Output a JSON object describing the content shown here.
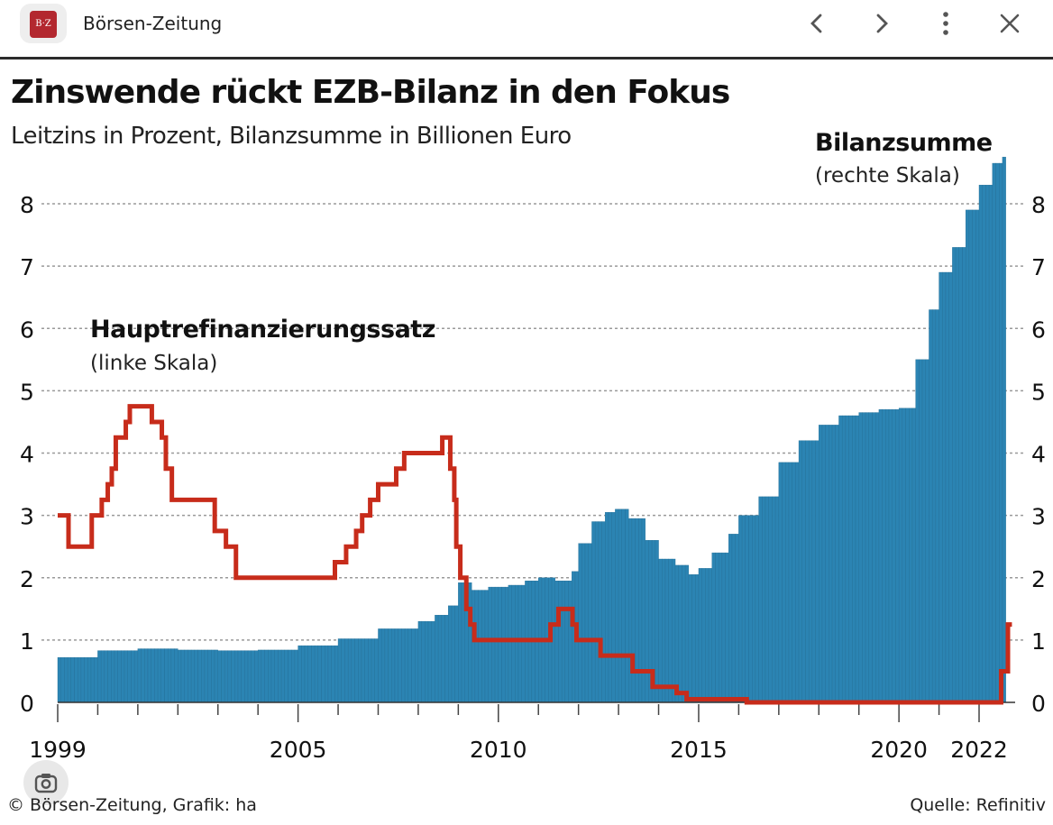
{
  "header": {
    "app_icon_text": "B·Z",
    "title": "Börsen-Zeitung"
  },
  "chart": {
    "title": "Zinswende rückt EZB-Bilanz in den Fokus",
    "subtitle": "Leitzins in Prozent, Bilanzsumme in Billionen Euro",
    "rate_label": "Hauptrefinanzierungssatz",
    "rate_sublabel": "(linke Skala)",
    "balance_label": "Bilanzsumme",
    "balance_sublabel": "(rechte Skala)",
    "credit": "© Börsen-Zeitung, Grafik: ha",
    "source": "Quelle: Refinitiv"
  },
  "chart_data": {
    "type": "bar",
    "xlim": [
      1999,
      2022.9
    ],
    "ylim_left": [
      0,
      8.6
    ],
    "ylim_right": [
      0,
      8.6
    ],
    "y_ticks": [
      0,
      1,
      2,
      3,
      4,
      5,
      6,
      7,
      8
    ],
    "x_tick_labels": [
      {
        "label": "1999",
        "x": 1999
      },
      {
        "label": "2005",
        "x": 2005
      },
      {
        "label": "2010",
        "x": 2010
      },
      {
        "label": "2015",
        "x": 2015
      },
      {
        "label": "2020",
        "x": 2020
      },
      {
        "label": "2022",
        "x": 2022
      }
    ],
    "grid": true,
    "colors": {
      "balance": "#2b84b3",
      "rate": "#c72c1b"
    },
    "series": [
      {
        "name": "Bilanzsumme",
        "axis": "right",
        "type": "bar",
        "points": [
          [
            1999.0,
            0.72
          ],
          [
            1999.95,
            0.83
          ],
          [
            2001.0,
            0.86
          ],
          [
            2002.0,
            0.84
          ],
          [
            2003.0,
            0.83
          ],
          [
            2004.0,
            0.84
          ],
          [
            2005.0,
            0.91
          ],
          [
            2006.0,
            1.02
          ],
          [
            2007.0,
            1.18
          ],
          [
            2008.0,
            1.3
          ],
          [
            2008.4,
            1.4
          ],
          [
            2008.75,
            1.55
          ],
          [
            2009.0,
            1.92
          ],
          [
            2009.3,
            1.8
          ],
          [
            2009.7,
            1.85
          ],
          [
            2010.2,
            1.88
          ],
          [
            2010.6,
            1.95
          ],
          [
            2011.0,
            2.0
          ],
          [
            2011.4,
            1.95
          ],
          [
            2011.8,
            2.1
          ],
          [
            2012.0,
            2.55
          ],
          [
            2012.3,
            2.9
          ],
          [
            2012.6,
            3.05
          ],
          [
            2012.9,
            3.1
          ],
          [
            2013.2,
            2.95
          ],
          [
            2013.6,
            2.6
          ],
          [
            2014.0,
            2.3
          ],
          [
            2014.4,
            2.2
          ],
          [
            2014.75,
            2.05
          ],
          [
            2015.0,
            2.15
          ],
          [
            2015.3,
            2.4
          ],
          [
            2015.7,
            2.7
          ],
          [
            2016.0,
            3.0
          ],
          [
            2016.5,
            3.3
          ],
          [
            2017.0,
            3.85
          ],
          [
            2017.5,
            4.2
          ],
          [
            2018.0,
            4.45
          ],
          [
            2018.5,
            4.6
          ],
          [
            2019.0,
            4.65
          ],
          [
            2019.5,
            4.7
          ],
          [
            2020.0,
            4.72
          ],
          [
            2020.4,
            5.5
          ],
          [
            2020.7,
            6.3
          ],
          [
            2021.0,
            6.9
          ],
          [
            2021.3,
            7.3
          ],
          [
            2021.6,
            7.9
          ],
          [
            2022.0,
            8.3
          ],
          [
            2022.3,
            8.65
          ],
          [
            2022.55,
            8.75
          ],
          [
            2022.65,
            8.8
          ]
        ]
      },
      {
        "name": "Hauptrefinanzierungssatz",
        "axis": "left",
        "type": "line",
        "steps": [
          [
            1999.0,
            3.0
          ],
          [
            1999.27,
            2.5
          ],
          [
            1999.85,
            3.0
          ],
          [
            2000.1,
            3.25
          ],
          [
            2000.25,
            3.5
          ],
          [
            2000.35,
            3.75
          ],
          [
            2000.45,
            4.25
          ],
          [
            2000.7,
            4.5
          ],
          [
            2000.8,
            4.75
          ],
          [
            2001.35,
            4.5
          ],
          [
            2001.6,
            4.25
          ],
          [
            2001.7,
            3.75
          ],
          [
            2001.85,
            3.25
          ],
          [
            2002.92,
            2.75
          ],
          [
            2003.2,
            2.5
          ],
          [
            2003.45,
            2.0
          ],
          [
            2005.92,
            2.25
          ],
          [
            2006.2,
            2.5
          ],
          [
            2006.45,
            2.75
          ],
          [
            2006.6,
            3.0
          ],
          [
            2006.8,
            3.25
          ],
          [
            2007.0,
            3.5
          ],
          [
            2007.45,
            3.75
          ],
          [
            2007.65,
            4.0
          ],
          [
            2008.6,
            4.25
          ],
          [
            2008.8,
            3.75
          ],
          [
            2008.9,
            3.25
          ],
          [
            2008.95,
            2.5
          ],
          [
            2009.05,
            2.0
          ],
          [
            2009.2,
            1.5
          ],
          [
            2009.3,
            1.25
          ],
          [
            2009.4,
            1.0
          ],
          [
            2011.3,
            1.25
          ],
          [
            2011.5,
            1.5
          ],
          [
            2011.85,
            1.25
          ],
          [
            2011.95,
            1.0
          ],
          [
            2012.55,
            0.75
          ],
          [
            2013.35,
            0.5
          ],
          [
            2013.85,
            0.25
          ],
          [
            2014.45,
            0.15
          ],
          [
            2014.7,
            0.05
          ],
          [
            2016.2,
            0.0
          ],
          [
            2022.55,
            0.5
          ],
          [
            2022.72,
            1.25
          ],
          [
            2022.82,
            1.25
          ]
        ]
      }
    ]
  }
}
